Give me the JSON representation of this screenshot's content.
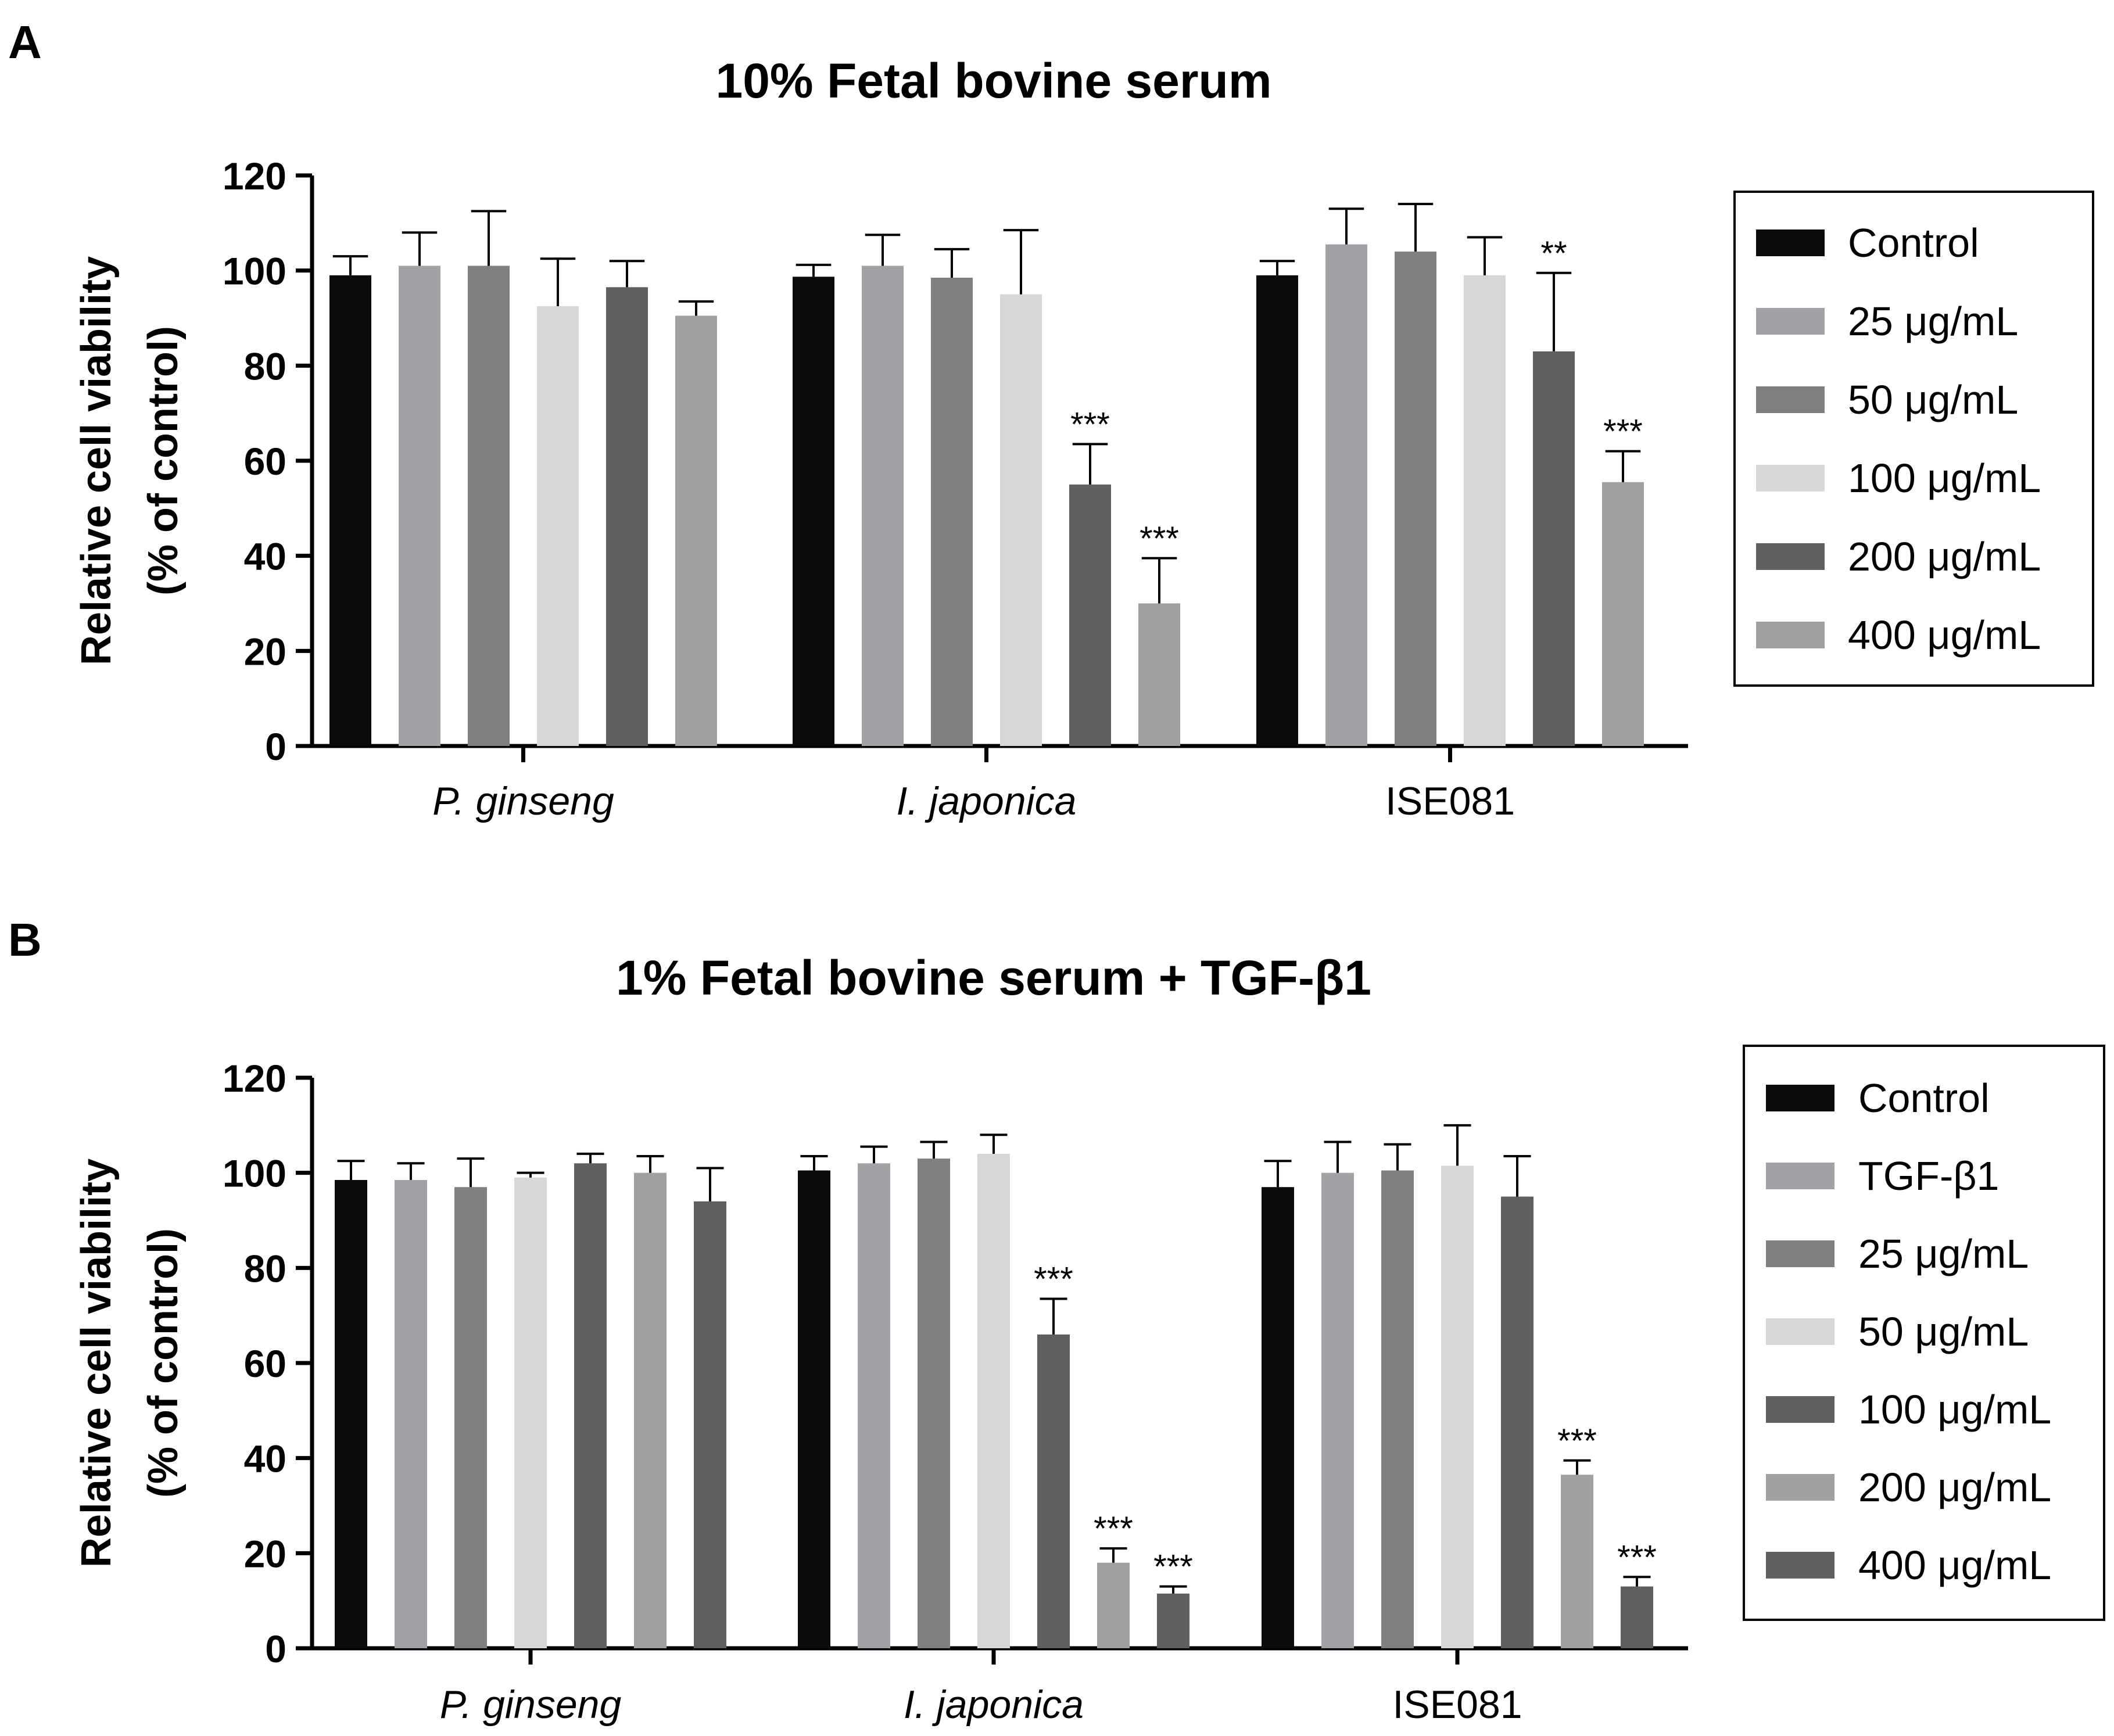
{
  "chart_data": [
    {
      "panel_label": "A",
      "type": "bar",
      "title": "10% Fetal bovine serum",
      "xlabel": "",
      "ylabel_line1": "Relative cell viability",
      "ylabel_line2": "(% of control)",
      "ylim": [
        0,
        120
      ],
      "yticks": [
        "0",
        "20",
        "40",
        "60",
        "80",
        "100",
        "120"
      ],
      "categories": [
        {
          "label": "P. ginseng",
          "italic": true
        },
        {
          "label": "I. japonica",
          "italic": true
        },
        {
          "label": "ISE081",
          "italic": false
        }
      ],
      "series": [
        {
          "name": "Control",
          "color": "#0b0b0b",
          "values": [
            99,
            98.7,
            99
          ],
          "errors": [
            4,
            2.5,
            3
          ],
          "sig": [
            "",
            "",
            ""
          ]
        },
        {
          "name": "25 μg/mL",
          "color": "#a2a2a6",
          "values": [
            101,
            101,
            105.5
          ],
          "errors": [
            7,
            6.5,
            7.5
          ],
          "sig": [
            "",
            "",
            ""
          ]
        },
        {
          "name": "50 μg/mL",
          "color": "#808082",
          "values": [
            101,
            98.5,
            104
          ],
          "errors": [
            11.5,
            6,
            10
          ],
          "sig": [
            "",
            "",
            ""
          ]
        },
        {
          "name": "100 μg/mL",
          "color": "#d7d7d7",
          "values": [
            92.5,
            95,
            99
          ],
          "errors": [
            10,
            13.5,
            8
          ],
          "sig": [
            "",
            "",
            ""
          ]
        },
        {
          "name": "200 μg/mL",
          "color": "#5f5f61",
          "values": [
            96.5,
            55,
            83
          ],
          "errors": [
            5.5,
            8.5,
            16.5
          ],
          "sig": [
            "",
            "***",
            "**"
          ]
        },
        {
          "name": "400 μg/mL",
          "color": "#a0a0a3",
          "values": [
            90.5,
            30,
            55.5
          ],
          "errors": [
            3,
            9.5,
            6.5
          ],
          "sig": [
            "",
            "***",
            "***"
          ]
        }
      ]
    },
    {
      "panel_label": "B",
      "type": "bar",
      "title": "1% Fetal bovine serum + TGF-β1",
      "xlabel": "",
      "ylabel_line1": "Relative cell viability",
      "ylabel_line2": "(% of control)",
      "ylim": [
        0,
        120
      ],
      "yticks": [
        "0",
        "20",
        "40",
        "60",
        "80",
        "100",
        "120"
      ],
      "categories": [
        {
          "label": "P. ginseng",
          "italic": true
        },
        {
          "label": "I. japonica",
          "italic": true
        },
        {
          "label": "ISE081",
          "italic": false
        }
      ],
      "series": [
        {
          "name": "Control",
          "color": "#0b0b0b",
          "values": [
            98.5,
            100.5,
            97
          ],
          "errors": [
            4,
            3,
            5.5
          ],
          "sig": [
            "",
            "",
            ""
          ]
        },
        {
          "name": "TGF-β1",
          "color": "#a2a2a6",
          "values": [
            98.5,
            102,
            100
          ],
          "errors": [
            3.5,
            3.5,
            6.5
          ],
          "sig": [
            "",
            "",
            ""
          ]
        },
        {
          "name": "25 μg/mL",
          "color": "#808082",
          "values": [
            97,
            103,
            100.5
          ],
          "errors": [
            6,
            3.5,
            5.5
          ],
          "sig": [
            "",
            "",
            ""
          ]
        },
        {
          "name": "50 μg/mL",
          "color": "#d7d7d7",
          "values": [
            99,
            104,
            101.5
          ],
          "errors": [
            1,
            4,
            8.5
          ],
          "sig": [
            "",
            "",
            ""
          ]
        },
        {
          "name": "100 μg/mL",
          "color": "#5f5f61",
          "values": [
            102,
            66,
            95
          ],
          "errors": [
            2,
            7.5,
            8.5
          ],
          "sig": [
            "",
            "***",
            ""
          ]
        },
        {
          "name": "200 μg/mL",
          "color": "#a0a0a3",
          "values": [
            100,
            18,
            36.5
          ],
          "errors": [
            3.5,
            3,
            3
          ],
          "sig": [
            "",
            "***",
            "***"
          ]
        },
        {
          "name": "400 μg/mL",
          "color": "#5f5f61",
          "values": [
            94,
            11.5,
            13
          ],
          "errors": [
            7,
            1.5,
            2
          ],
          "sig": [
            "",
            "***",
            "***"
          ]
        }
      ]
    }
  ]
}
